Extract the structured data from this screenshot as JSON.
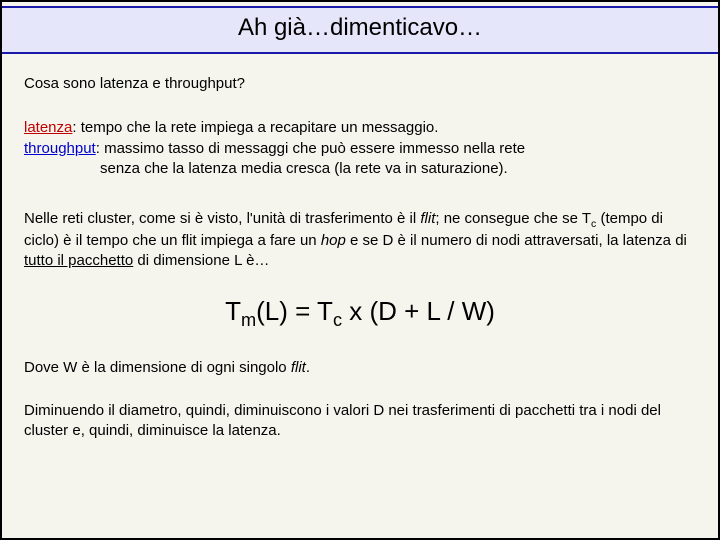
{
  "title": "Ah già…dimenticavo…",
  "question": "Cosa sono latenza e throughput?",
  "def_latenza_term": "latenza",
  "def_latenza_body": ": tempo che la rete impiega a recapitare un messaggio.",
  "def_throughput_term": "throughput",
  "def_throughput_body1": ": massimo tasso di messaggi che può essere immesso nella rete",
  "def_throughput_body2": "senza che la latenza media cresca (la rete va in saturazione).",
  "para1_a": "Nelle reti cluster, come si è visto, l'unità di trasferimento è il ",
  "para1_flit1": "flit",
  "para1_b": "; ne consegue che se T",
  "para1_c": " (tempo di ciclo) è il tempo che un flit impiega a fare un ",
  "para1_hop": "hop",
  "para1_d": " e se D è il numero di nodi attraversati, la latenza di ",
  "para1_underlined": "tutto il pacchetto",
  "para1_e": " di dimensione L è…",
  "formula_a": "T",
  "formula_b": "(L) = T",
  "formula_c": " x (D + L / W)",
  "para2_a": "Dove W è la dimensione di ogni singolo ",
  "para2_flit": "flit",
  "para2_b": ".",
  "para3": "Diminuendo il diametro, quindi, diminuiscono i valori D nei trasferimenti di pacchetti tra i nodi del cluster e, quindi, diminuisce la latenza.",
  "colors": {
    "title_bg": "#e6e6fa",
    "title_border": "#1a1aaa",
    "page_bg": "#f5f5ee",
    "red": "#c00000",
    "blue": "#0000cc"
  }
}
